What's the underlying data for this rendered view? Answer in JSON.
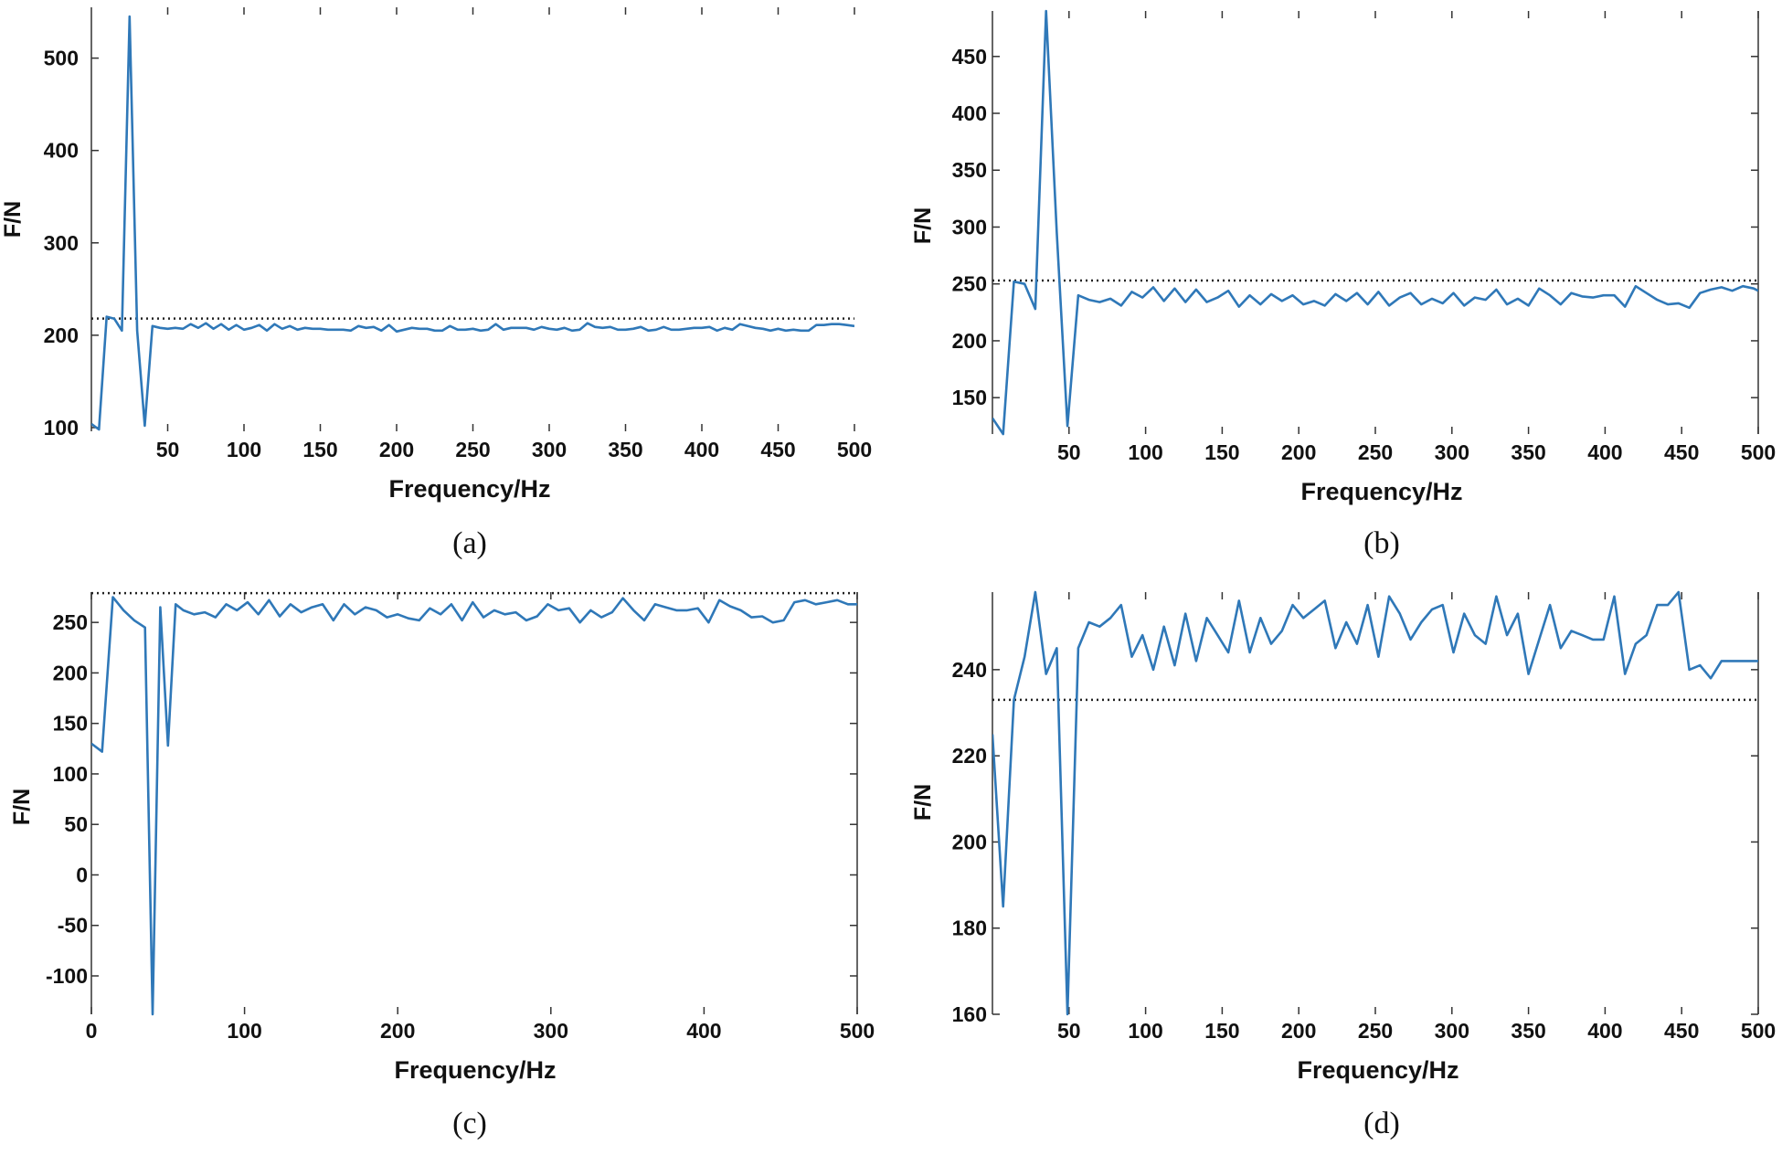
{
  "figure": {
    "line_color": "#2f78b8",
    "ref_color": "#222222"
  },
  "chart_data": [
    {
      "id": "a",
      "type": "line",
      "caption": "(a)",
      "xlabel": "Frequency/Hz",
      "ylabel": "F/N",
      "xlim": [
        0,
        500
      ],
      "ylim": [
        96,
        555
      ],
      "xticks": [
        50,
        100,
        150,
        200,
        250,
        300,
        350,
        400,
        450,
        500
      ],
      "yticks": [
        100,
        200,
        300,
        400,
        500
      ],
      "reference_line": 218,
      "x": [
        0,
        5,
        10,
        15,
        20,
        25,
        30,
        35,
        40,
        45,
        50,
        55,
        60,
        65,
        70,
        75,
        80,
        85,
        90,
        95,
        100,
        105,
        110,
        115,
        120,
        125,
        130,
        135,
        140,
        145,
        150,
        155,
        160,
        165,
        170,
        175,
        180,
        185,
        190,
        195,
        200,
        205,
        210,
        215,
        220,
        225,
        230,
        235,
        240,
        245,
        250,
        255,
        260,
        265,
        270,
        275,
        280,
        285,
        290,
        295,
        300,
        305,
        310,
        315,
        320,
        325,
        330,
        335,
        340,
        345,
        350,
        355,
        360,
        365,
        370,
        375,
        380,
        385,
        390,
        395,
        400,
        405,
        410,
        415,
        420,
        425,
        430,
        435,
        440,
        445,
        450,
        455,
        460,
        465,
        470,
        475,
        480,
        485,
        490,
        495,
        500
      ],
      "y": [
        104,
        98,
        220,
        218,
        205,
        545,
        205,
        102,
        210,
        208,
        207,
        208,
        207,
        212,
        208,
        213,
        207,
        212,
        206,
        211,
        206,
        208,
        211,
        205,
        212,
        207,
        210,
        206,
        208,
        207,
        207,
        206,
        206,
        206,
        205,
        210,
        208,
        209,
        205,
        211,
        204,
        206,
        208,
        207,
        207,
        205,
        205,
        210,
        206,
        206,
        207,
        205,
        206,
        212,
        206,
        208,
        208,
        208,
        206,
        209,
        207,
        206,
        208,
        205,
        206,
        213,
        209,
        208,
        209,
        206,
        206,
        207,
        209,
        205,
        206,
        209,
        206,
        206,
        207,
        208,
        208,
        209,
        205,
        208,
        206,
        212,
        210,
        208,
        207,
        205,
        207,
        205,
        206,
        205,
        205,
        211,
        211,
        212,
        212,
        211,
        210
      ]
    },
    {
      "id": "b",
      "type": "line",
      "caption": "(b)",
      "xlabel": "Frequency/Hz",
      "ylabel": "F/N",
      "xlim": [
        0,
        500
      ],
      "ylim": [
        118,
        490
      ],
      "xticks": [
        50,
        100,
        150,
        200,
        250,
        300,
        350,
        400,
        450,
        500
      ],
      "yticks": [
        150,
        200,
        250,
        300,
        350,
        400,
        450
      ],
      "reference_line": 253,
      "x": [
        0,
        7,
        14,
        21,
        28,
        35,
        42,
        49,
        56,
        63,
        70,
        77,
        84,
        91,
        98,
        105,
        112,
        119,
        126,
        133,
        140,
        147,
        154,
        161,
        168,
        175,
        182,
        189,
        196,
        203,
        210,
        217,
        224,
        231,
        238,
        245,
        252,
        259,
        266,
        273,
        280,
        287,
        294,
        301,
        308,
        315,
        322,
        329,
        336,
        343,
        350,
        357,
        364,
        371,
        378,
        385,
        392,
        399,
        406,
        413,
        420,
        427,
        434,
        441,
        448,
        455,
        462,
        469,
        476,
        483,
        490,
        497,
        500
      ],
      "y": [
        132,
        118,
        252,
        250,
        228,
        490,
        295,
        125,
        240,
        236,
        234,
        237,
        231,
        243,
        238,
        247,
        235,
        246,
        234,
        245,
        234,
        238,
        244,
        230,
        240,
        232,
        241,
        235,
        240,
        232,
        235,
        231,
        241,
        235,
        242,
        232,
        243,
        231,
        238,
        242,
        232,
        237,
        233,
        242,
        231,
        238,
        236,
        245,
        232,
        237,
        231,
        246,
        240,
        232,
        242,
        239,
        238,
        240,
        240,
        230,
        248,
        242,
        236,
        232,
        233,
        229,
        242,
        245,
        247,
        244,
        248,
        246,
        244
      ]
    },
    {
      "id": "c",
      "type": "line",
      "caption": "(c)",
      "xlabel": "Frequency/Hz",
      "ylabel": "F/N",
      "xlim": [
        0,
        500
      ],
      "ylim": [
        -138,
        280
      ],
      "xticks": [
        0,
        100,
        200,
        300,
        400,
        500
      ],
      "yticks": [
        -100,
        -50,
        0,
        50,
        100,
        150,
        200,
        250
      ],
      "reference_line": 279,
      "x": [
        0,
        7,
        14,
        21,
        28,
        35,
        40,
        45,
        50,
        55,
        60,
        67,
        74,
        81,
        88,
        95,
        102,
        109,
        116,
        123,
        130,
        137,
        144,
        151,
        158,
        165,
        172,
        179,
        186,
        193,
        200,
        207,
        214,
        221,
        228,
        235,
        242,
        249,
        256,
        263,
        270,
        277,
        284,
        291,
        298,
        305,
        312,
        319,
        326,
        333,
        340,
        347,
        354,
        361,
        368,
        375,
        382,
        389,
        396,
        403,
        410,
        417,
        424,
        431,
        438,
        445,
        452,
        459,
        466,
        473,
        480,
        487,
        494,
        500
      ],
      "y": [
        130,
        122,
        275,
        262,
        252,
        245,
        -138,
        265,
        128,
        268,
        262,
        258,
        260,
        255,
        268,
        262,
        270,
        258,
        272,
        256,
        268,
        260,
        265,
        268,
        252,
        268,
        258,
        265,
        262,
        255,
        258,
        254,
        252,
        264,
        258,
        268,
        252,
        270,
        255,
        262,
        258,
        260,
        252,
        256,
        268,
        262,
        264,
        250,
        262,
        255,
        260,
        274,
        262,
        252,
        268,
        265,
        262,
        262,
        264,
        250,
        272,
        266,
        262,
        255,
        256,
        250,
        252,
        270,
        272,
        268,
        270,
        272,
        268,
        268
      ]
    },
    {
      "id": "d",
      "type": "line",
      "caption": "(d)",
      "xlabel": "Frequency/Hz",
      "ylabel": "F/N",
      "xlim": [
        0,
        500
      ],
      "ylim": [
        160,
        258
      ],
      "xticks": [
        50,
        100,
        150,
        200,
        250,
        300,
        350,
        400,
        450,
        500
      ],
      "yticks": [
        160,
        180,
        200,
        220,
        240
      ],
      "reference_line": 233,
      "x": [
        0,
        7,
        14,
        21,
        28,
        35,
        42,
        49,
        56,
        63,
        70,
        77,
        84,
        91,
        98,
        105,
        112,
        119,
        126,
        133,
        140,
        147,
        154,
        161,
        168,
        175,
        182,
        189,
        196,
        203,
        210,
        217,
        224,
        231,
        238,
        245,
        252,
        259,
        266,
        273,
        280,
        287,
        294,
        301,
        308,
        315,
        322,
        329,
        336,
        343,
        350,
        357,
        364,
        371,
        378,
        385,
        392,
        399,
        406,
        413,
        420,
        427,
        434,
        441,
        448,
        455,
        462,
        469,
        476,
        483,
        490,
        497,
        500
      ],
      "y": [
        225,
        185,
        233,
        243,
        258,
        239,
        245,
        160,
        245,
        251,
        250,
        252,
        255,
        243,
        248,
        240,
        250,
        241,
        253,
        242,
        252,
        248,
        244,
        256,
        244,
        252,
        246,
        249,
        255,
        252,
        254,
        256,
        245,
        251,
        246,
        255,
        243,
        257,
        253,
        247,
        251,
        254,
        255,
        244,
        253,
        248,
        246,
        257,
        248,
        253,
        239,
        247,
        255,
        245,
        249,
        248,
        247,
        247,
        257,
        239,
        246,
        248,
        255,
        255,
        258,
        240,
        241,
        238,
        242,
        242,
        242,
        242,
        242
      ]
    }
  ]
}
